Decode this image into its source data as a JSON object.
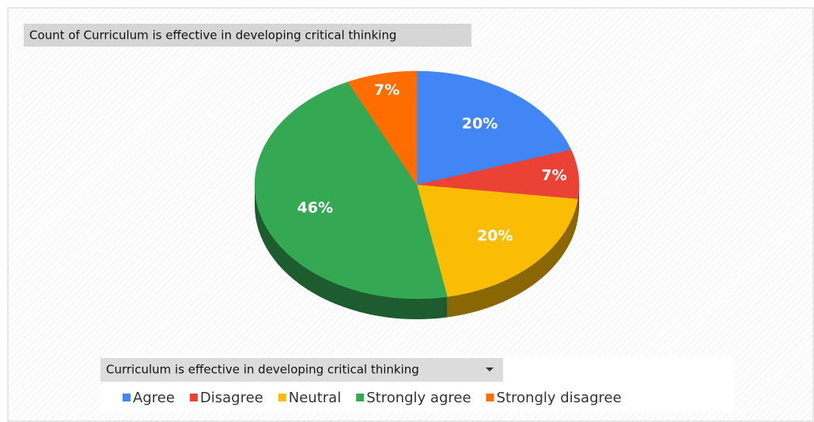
{
  "chart_data": {
    "type": "pie",
    "title": "Count of Curriculum is effective in developing critical thinking",
    "legend_title": "Curriculum is effective in developing critical thinking",
    "categories": [
      "Agree",
      "Disagree",
      "Neutral",
      "Strongly agree",
      "Strongly disagree"
    ],
    "values": [
      20,
      7,
      20,
      46,
      7
    ],
    "value_labels": [
      "20%",
      "7%",
      "20%",
      "46%",
      "7%"
    ],
    "colors": [
      "#4285f4",
      "#ea4335",
      "#fbbc04",
      "#34a853",
      "#ff6d01"
    ],
    "legend": "bottom"
  }
}
